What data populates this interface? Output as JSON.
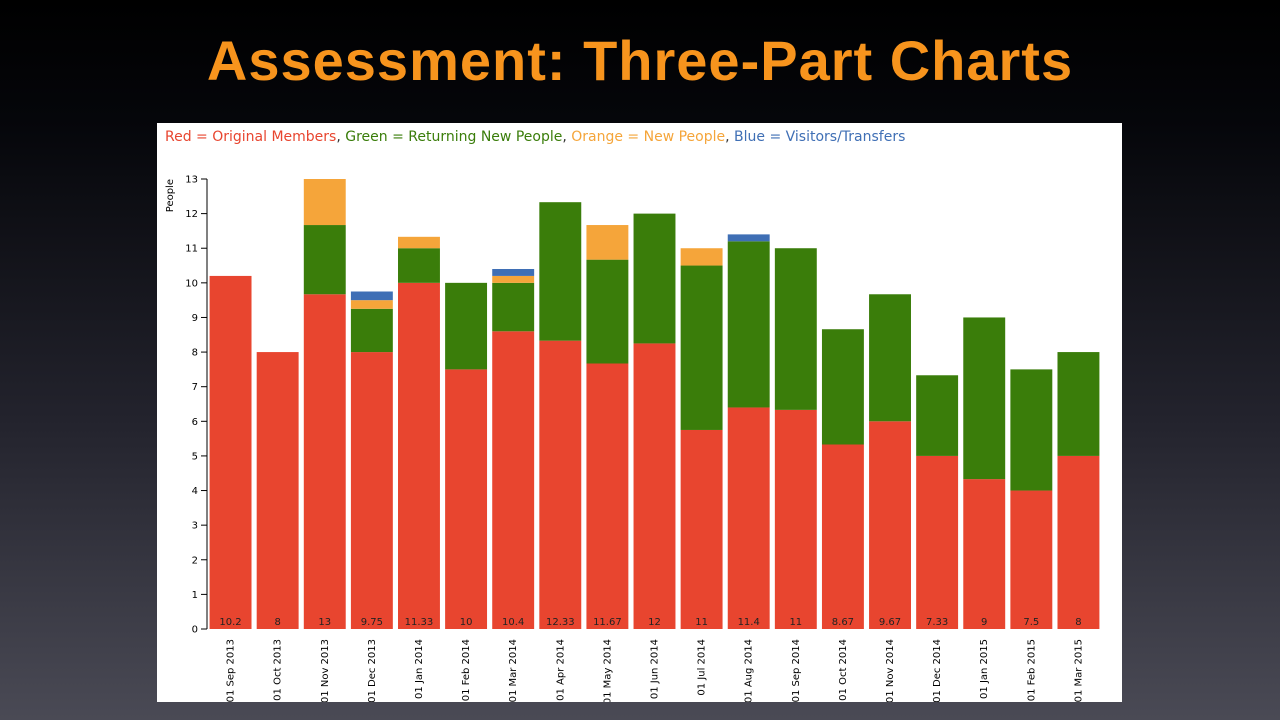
{
  "slide": {
    "title": "Assessment: Three-Part Charts",
    "title_color": "#f7941d"
  },
  "legend": {
    "items": [
      {
        "text": "Red = Original Members",
        "color": "#e8452f"
      },
      {
        "text": "Green = Returning New People",
        "color": "#3a7d0a"
      },
      {
        "text": "Orange = New People",
        "color": "#f5a53a"
      },
      {
        "text": "Blue = Visitors/Transfers",
        "color": "#3f6fb5"
      }
    ],
    "separator": ", "
  },
  "chart_data": {
    "type": "bar",
    "stacked": true,
    "ylabel": "People",
    "xlabel": "",
    "ylim": [
      0,
      13
    ],
    "yticks": [
      0,
      1,
      2,
      3,
      4,
      5,
      6,
      7,
      8,
      9,
      10,
      11,
      12,
      13
    ],
    "grid": false,
    "categories": [
      "01 Sep 2013",
      "01 Oct 2013",
      "01 Nov 2013",
      "01 Dec 2013",
      "01 Jan 2014",
      "01 Feb 2014",
      "01 Mar 2014",
      "01 Apr 2014",
      "01 May 2014",
      "01 Jun 2014",
      "01 Jul 2014",
      "01 Aug 2014",
      "01 Sep 2014",
      "01 Oct 2014",
      "01 Nov 2014",
      "01 Dec 2014",
      "01 Jan 2015",
      "01 Feb 2015",
      "01 Mar 2015"
    ],
    "totals_labels": [
      "10.2",
      "8",
      "13",
      "9.75",
      "11.33",
      "10",
      "10.4",
      "12.33",
      "11.67",
      "12",
      "11",
      "11.4",
      "11",
      "8.67",
      "9.67",
      "7.33",
      "9",
      "7.5",
      "8"
    ],
    "series": [
      {
        "name": "Original Members",
        "color": "#e8452f",
        "values": [
          10.2,
          8,
          9.67,
          8,
          10,
          7.5,
          8.6,
          8.33,
          7.67,
          8.25,
          5.75,
          6.4,
          6.33,
          5.33,
          6,
          5,
          4.33,
          4,
          5
        ]
      },
      {
        "name": "Returning New People",
        "color": "#3a7d0a",
        "values": [
          0,
          0,
          2,
          1.25,
          1,
          2.5,
          1.4,
          4,
          3,
          3.75,
          4.75,
          4.8,
          4.67,
          3.33,
          3.67,
          2.33,
          4.67,
          3.5,
          3
        ]
      },
      {
        "name": "New People",
        "color": "#f5a53a",
        "values": [
          0,
          0,
          1.33,
          0.25,
          0.33,
          0,
          0.2,
          0,
          1,
          0,
          0.5,
          0,
          0,
          0,
          0,
          0,
          0,
          0,
          0
        ]
      },
      {
        "name": "Visitors/Transfers",
        "color": "#3f6fb5",
        "values": [
          0,
          0,
          0,
          0.25,
          0,
          0,
          0.2,
          0,
          0,
          0,
          0,
          0.2,
          0,
          0,
          0,
          0,
          0,
          0,
          0
        ]
      }
    ]
  }
}
